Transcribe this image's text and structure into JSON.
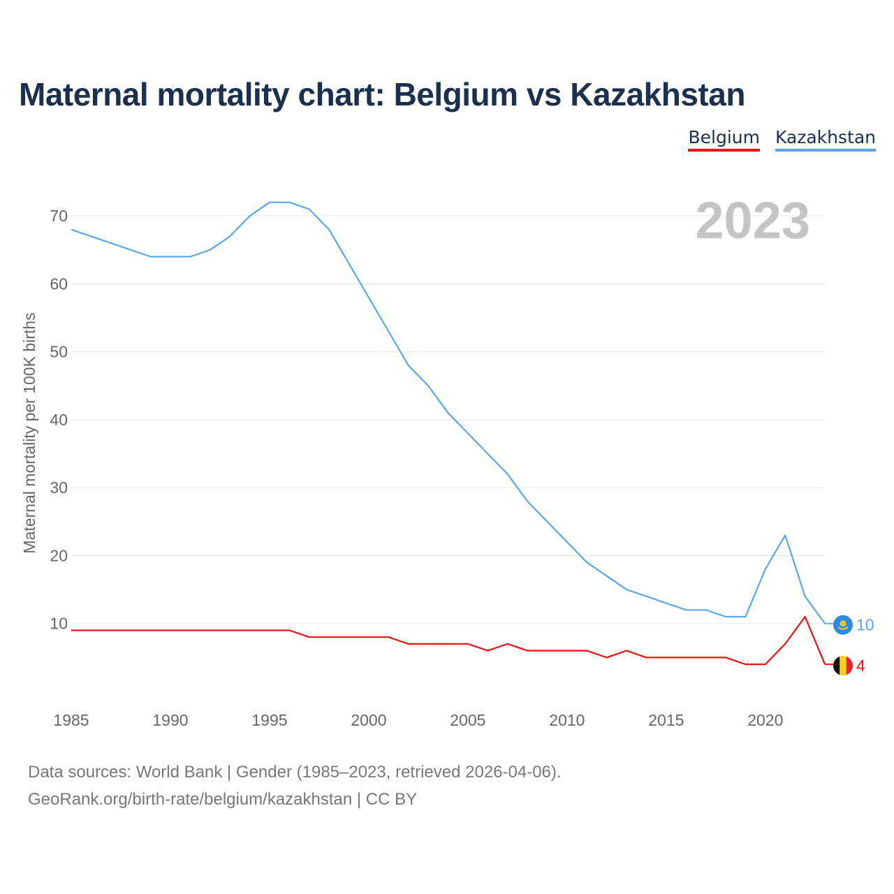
{
  "title": "Maternal mortality chart: Belgium vs Kazakhstan",
  "legend": {
    "belgium": "Belgium",
    "kazakhstan": "Kazakhstan"
  },
  "year_badge": "2023",
  "footer": {
    "source": "Data sources: World Bank | Gender (1985–2023, retrieved 2026-04-06).",
    "site": "GeoRank.org/birth-rate/belgium/kazakhstan | CC BY"
  },
  "chart_data": {
    "type": "line",
    "title": "Maternal mortality chart: Belgium vs Kazakhstan",
    "xlabel": "",
    "ylabel": "Maternal mortality per 100K births",
    "xlim": [
      1985,
      2023
    ],
    "ylim": [
      0,
      73
    ],
    "x_ticks": [
      1985,
      1990,
      1995,
      2000,
      2005,
      2010,
      2015,
      2020
    ],
    "y_ticks": [
      10,
      20,
      30,
      40,
      50,
      60,
      70
    ],
    "grid": true,
    "x": [
      1985,
      1986,
      1987,
      1988,
      1989,
      1990,
      1991,
      1992,
      1993,
      1994,
      1995,
      1996,
      1997,
      1998,
      1999,
      2000,
      2001,
      2002,
      2003,
      2004,
      2005,
      2006,
      2007,
      2008,
      2009,
      2010,
      2011,
      2012,
      2013,
      2014,
      2015,
      2016,
      2017,
      2018,
      2019,
      2020,
      2021,
      2022,
      2023
    ],
    "series": [
      {
        "name": "Belgium",
        "color": "#ee1111",
        "values": [
          9,
          9,
          9,
          9,
          9,
          9,
          9,
          9,
          9,
          9,
          9,
          9,
          8,
          8,
          8,
          8,
          8,
          7,
          7,
          7,
          7,
          6,
          7,
          6,
          6,
          6,
          6,
          5,
          6,
          5,
          5,
          5,
          5,
          5,
          4,
          4,
          7,
          11,
          4
        ],
        "end_label": "4",
        "flag": "belgium-flag"
      },
      {
        "name": "Kazakhstan",
        "color": "#5aa6e8",
        "values": [
          68,
          67,
          66,
          65,
          64,
          64,
          64,
          65,
          67,
          70,
          72,
          72,
          71,
          68,
          63,
          58,
          53,
          48,
          45,
          41,
          38,
          35,
          32,
          28,
          25,
          22,
          19,
          17,
          15,
          14,
          13,
          12,
          12,
          11,
          11,
          18,
          23,
          14,
          10
        ],
        "end_label": "10",
        "flag": "kazakhstan-flag"
      }
    ]
  }
}
